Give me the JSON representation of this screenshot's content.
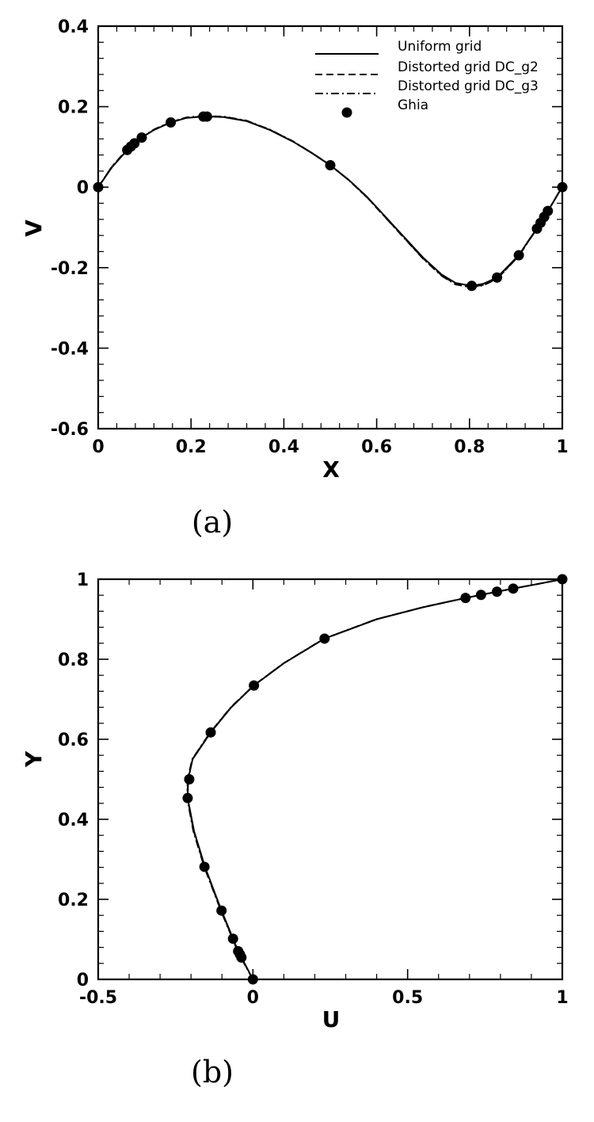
{
  "chart_data": [
    {
      "type": "line",
      "panel": "a",
      "caption": "(a)",
      "xlabel": "X",
      "ylabel": "V",
      "xlim": [
        0,
        1
      ],
      "ylim": [
        -0.6,
        0.4
      ],
      "xticks": [
        0,
        0.2,
        0.4,
        0.6,
        0.8,
        1
      ],
      "xtick_labels": [
        "0",
        "0.2",
        "0.4",
        "0.6",
        "0.8",
        "1"
      ],
      "yticks": [
        -0.6,
        -0.4,
        -0.2,
        0,
        0.2,
        0.4
      ],
      "ytick_labels": [
        "-0.6",
        "-0.4",
        "-0.2",
        "0",
        "0.2",
        "0.4"
      ],
      "grid": false,
      "legend_position": "top-right",
      "series": [
        {
          "name": "Uniform grid",
          "style": "solid",
          "x": [
            0,
            0.03,
            0.0625,
            0.0703,
            0.0781,
            0.0938,
            0.12,
            0.1563,
            0.19,
            0.2266,
            0.2344,
            0.27,
            0.32,
            0.37,
            0.42,
            0.46,
            0.5,
            0.54,
            0.58,
            0.62,
            0.66,
            0.7,
            0.74,
            0.77,
            0.8047,
            0.83,
            0.8594,
            0.88,
            0.9063,
            0.93,
            0.9453,
            0.9531,
            0.9609,
            0.9688,
            0.98,
            0.99,
            1
          ],
          "y": [
            0,
            0.05,
            0.0923,
            0.1009,
            0.1089,
            0.1232,
            0.142,
            0.1608,
            0.172,
            0.1753,
            0.1753,
            0.174,
            0.164,
            0.142,
            0.113,
            0.085,
            0.0545,
            0.018,
            -0.025,
            -0.075,
            -0.125,
            -0.175,
            -0.217,
            -0.238,
            -0.2453,
            -0.24,
            -0.2245,
            -0.2,
            -0.1691,
            -0.128,
            -0.1031,
            -0.0886,
            -0.0739,
            -0.0591,
            -0.038,
            -0.018,
            0
          ]
        },
        {
          "name": "Distorted grid DC_g2",
          "style": "dashed",
          "x": [
            0,
            0.03,
            0.0625,
            0.0781,
            0.0938,
            0.12,
            0.1563,
            0.19,
            0.2266,
            0.27,
            0.32,
            0.37,
            0.42,
            0.46,
            0.5,
            0.54,
            0.58,
            0.62,
            0.66,
            0.7,
            0.74,
            0.77,
            0.8047,
            0.83,
            0.8594,
            0.88,
            0.9063,
            0.93,
            0.9453,
            0.9609,
            0.98,
            0.99,
            1
          ],
          "y": [
            0,
            0.051,
            0.0928,
            0.1094,
            0.1236,
            0.1425,
            0.1612,
            0.1725,
            0.1758,
            0.1746,
            0.1645,
            0.1424,
            0.1133,
            0.0851,
            0.0544,
            0.0175,
            -0.0258,
            -0.0762,
            -0.1267,
            -0.1769,
            -0.2192,
            -0.2405,
            -0.2478,
            -0.2428,
            -0.227,
            -0.2022,
            -0.1705,
            -0.1288,
            -0.1036,
            -0.0742,
            -0.038,
            -0.018,
            0
          ]
        },
        {
          "name": "Distorted grid DC_g3",
          "style": "dashdot",
          "x": [
            0,
            0.03,
            0.0625,
            0.0781,
            0.0938,
            0.12,
            0.1563,
            0.19,
            0.2266,
            0.27,
            0.32,
            0.37,
            0.42,
            0.46,
            0.5,
            0.54,
            0.58,
            0.62,
            0.66,
            0.7,
            0.74,
            0.77,
            0.8047,
            0.83,
            0.8594,
            0.88,
            0.9063,
            0.93,
            0.9453,
            0.9609,
            0.98,
            0.99,
            1
          ],
          "y": [
            0,
            0.052,
            0.0935,
            0.11,
            0.1242,
            0.1432,
            0.162,
            0.1733,
            0.1767,
            0.1755,
            0.1652,
            0.143,
            0.1138,
            0.0854,
            0.0546,
            0.0173,
            -0.0262,
            -0.0768,
            -0.1274,
            -0.1778,
            -0.2203,
            -0.2417,
            -0.249,
            -0.2438,
            -0.2278,
            -0.2028,
            -0.171,
            -0.1293,
            -0.104,
            -0.0745,
            -0.0382,
            -0.0181,
            0
          ]
        },
        {
          "name": "Ghia",
          "style": "markers",
          "x": [
            0,
            0.0625,
            0.0703,
            0.0781,
            0.0938,
            0.1563,
            0.2266,
            0.2344,
            0.5,
            0.8047,
            0.8594,
            0.9063,
            0.9453,
            0.9531,
            0.9609,
            0.9688,
            1
          ],
          "y": [
            0,
            0.0923,
            0.1009,
            0.1089,
            0.1232,
            0.1608,
            0.1753,
            0.1753,
            0.0545,
            -0.2453,
            -0.2245,
            -0.1691,
            -0.1031,
            -0.0886,
            -0.0739,
            -0.0591,
            0
          ]
        }
      ]
    },
    {
      "type": "line",
      "panel": "b",
      "caption": "(b)",
      "xlabel": "U",
      "ylabel": "Y",
      "xlim": [
        -0.5,
        1
      ],
      "ylim": [
        0,
        1
      ],
      "xticks": [
        -0.5,
        0,
        0.5,
        1
      ],
      "xtick_labels": [
        "-0.5",
        "0",
        "0.5",
        "1"
      ],
      "yticks": [
        0,
        0.2,
        0.4,
        0.6,
        0.8,
        1
      ],
      "ytick_labels": [
        "0",
        "0.2",
        "0.4",
        "0.6",
        "0.8",
        "1"
      ],
      "grid": false,
      "series": [
        {
          "name": "Uniform grid",
          "style": "solid",
          "x": [
            0,
            -0.037,
            -0.042,
            -0.0477,
            -0.064,
            -0.1015,
            -0.155,
            -0.19,
            -0.2109,
            -0.2093,
            -0.195,
            -0.1364,
            -0.07,
            0.0033,
            0.1,
            0.2315,
            0.4,
            0.55,
            0.6872,
            0.7372,
            0.7887,
            0.8412,
            0.92,
            1
          ],
          "y": [
            0,
            0.0547,
            0.0625,
            0.0703,
            0.1016,
            0.1719,
            0.2813,
            0.37,
            0.4531,
            0.5,
            0.55,
            0.6172,
            0.68,
            0.7344,
            0.79,
            0.8516,
            0.9,
            0.93,
            0.9531,
            0.9609,
            0.9688,
            0.9766,
            0.988,
            1
          ]
        },
        {
          "name": "Distorted grid DC_g2",
          "style": "dashed",
          "x": [
            0,
            -0.038,
            -0.0485,
            -0.065,
            -0.1025,
            -0.1562,
            -0.1912,
            -0.2118,
            -0.2101,
            -0.1957,
            -0.1372,
            -0.0706,
            0.0028,
            0.0996,
            0.231,
            0.3995,
            0.5496,
            0.6868,
            0.7884,
            0.8409,
            0.92,
            1
          ],
          "y": [
            0,
            0.0547,
            0.0703,
            0.1016,
            0.1719,
            0.2813,
            0.37,
            0.4531,
            0.5,
            0.55,
            0.6172,
            0.68,
            0.7344,
            0.79,
            0.8516,
            0.9,
            0.93,
            0.9531,
            0.9688,
            0.9766,
            0.988,
            1
          ]
        },
        {
          "name": "Distorted grid DC_g3",
          "style": "dashdot",
          "x": [
            0,
            -0.039,
            -0.0493,
            -0.066,
            -0.1035,
            -0.1574,
            -0.1924,
            -0.2127,
            -0.2109,
            -0.1964,
            -0.138,
            -0.0712,
            0.0022,
            0.0991,
            0.2305,
            0.399,
            0.5492,
            0.6864,
            0.788,
            0.8406,
            0.92,
            1
          ],
          "y": [
            0,
            0.0547,
            0.0703,
            0.1016,
            0.1719,
            0.2813,
            0.37,
            0.4531,
            0.5,
            0.55,
            0.6172,
            0.68,
            0.7344,
            0.79,
            0.8516,
            0.9,
            0.93,
            0.9531,
            0.9688,
            0.9766,
            0.988,
            1
          ]
        },
        {
          "name": "Ghia",
          "style": "markers",
          "x": [
            0,
            -0.0372,
            -0.0419,
            -0.0477,
            -0.0643,
            -0.1015,
            -0.1566,
            -0.2109,
            -0.2058,
            -0.1364,
            0.0033,
            0.2315,
            0.6872,
            0.7372,
            0.7887,
            0.8412,
            1
          ],
          "y": [
            0,
            0.0547,
            0.0625,
            0.0703,
            0.1016,
            0.1719,
            0.2813,
            0.4531,
            0.5,
            0.6172,
            0.7344,
            0.8516,
            0.9531,
            0.9609,
            0.9688,
            0.9766,
            1
          ]
        }
      ]
    }
  ]
}
